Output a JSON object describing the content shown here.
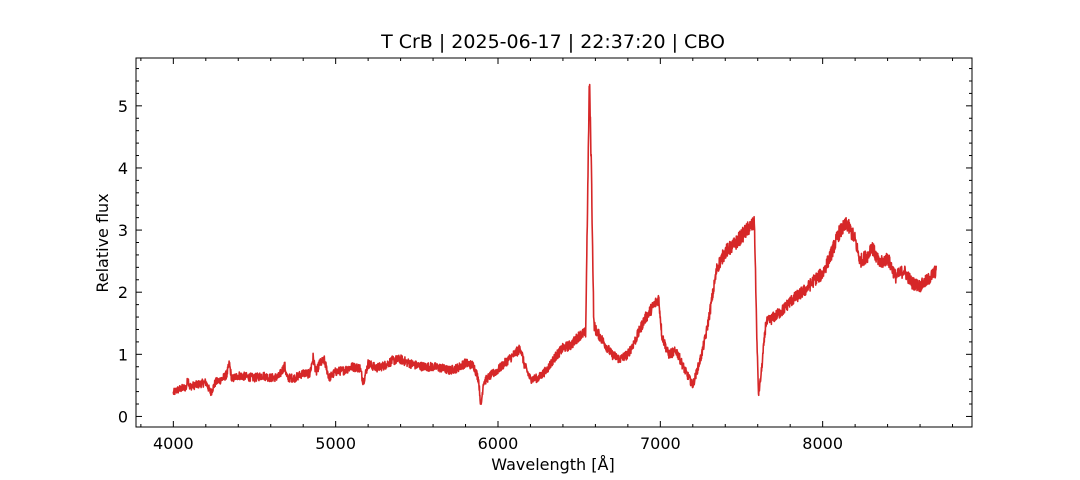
{
  "chart_data": {
    "type": "line",
    "title": "T CrB | 2025-06-17 | 22:37:20 | CBO",
    "xlabel": "Wavelength [Å]",
    "ylabel": "Relative flux",
    "xlim": [
      3770,
      8920
    ],
    "ylim": [
      -0.17,
      5.77
    ],
    "xticks": [
      4000,
      5000,
      6000,
      7000,
      8000
    ],
    "yticks": [
      0,
      1,
      2,
      3,
      4,
      5
    ],
    "tick_direction": "in",
    "minor_ticks": true,
    "grid": false,
    "legend": "none",
    "series": [
      {
        "color": "#d62728",
        "noise_amplitude": 0.09,
        "points": [
          [
            4000,
            0.38
          ],
          [
            4020,
            0.42
          ],
          [
            4050,
            0.45
          ],
          [
            4080,
            0.47
          ],
          [
            4090,
            0.62
          ],
          [
            4100,
            0.48
          ],
          [
            4130,
            0.5
          ],
          [
            4160,
            0.52
          ],
          [
            4200,
            0.55
          ],
          [
            4230,
            0.38
          ],
          [
            4260,
            0.55
          ],
          [
            4300,
            0.6
          ],
          [
            4330,
            0.68
          ],
          [
            4345,
            0.85
          ],
          [
            4360,
            0.6
          ],
          [
            4400,
            0.66
          ],
          [
            4450,
            0.64
          ],
          [
            4500,
            0.62
          ],
          [
            4550,
            0.66
          ],
          [
            4600,
            0.62
          ],
          [
            4650,
            0.64
          ],
          [
            4686,
            0.82
          ],
          [
            4700,
            0.62
          ],
          [
            4750,
            0.62
          ],
          [
            4800,
            0.7
          ],
          [
            4840,
            0.68
          ],
          [
            4861,
            0.95
          ],
          [
            4880,
            0.7
          ],
          [
            4900,
            0.85
          ],
          [
            4930,
            0.9
          ],
          [
            4960,
            0.62
          ],
          [
            5000,
            0.72
          ],
          [
            5050,
            0.74
          ],
          [
            5100,
            0.8
          ],
          [
            5150,
            0.78
          ],
          [
            5170,
            0.55
          ],
          [
            5200,
            0.85
          ],
          [
            5250,
            0.78
          ],
          [
            5300,
            0.82
          ],
          [
            5350,
            0.9
          ],
          [
            5400,
            0.92
          ],
          [
            5450,
            0.86
          ],
          [
            5500,
            0.82
          ],
          [
            5550,
            0.8
          ],
          [
            5600,
            0.8
          ],
          [
            5650,
            0.78
          ],
          [
            5700,
            0.74
          ],
          [
            5750,
            0.78
          ],
          [
            5800,
            0.86
          ],
          [
            5850,
            0.82
          ],
          [
            5880,
            0.6
          ],
          [
            5895,
            0.15
          ],
          [
            5910,
            0.55
          ],
          [
            5950,
            0.65
          ],
          [
            6000,
            0.75
          ],
          [
            6050,
            0.88
          ],
          [
            6100,
            1.0
          ],
          [
            6140,
            1.1
          ],
          [
            6160,
            0.85
          ],
          [
            6200,
            0.6
          ],
          [
            6250,
            0.62
          ],
          [
            6300,
            0.75
          ],
          [
            6350,
            0.95
          ],
          [
            6400,
            1.1
          ],
          [
            6450,
            1.15
          ],
          [
            6500,
            1.3
          ],
          [
            6540,
            1.35
          ],
          [
            6563,
            5.42
          ],
          [
            6575,
            4.05
          ],
          [
            6590,
            1.5
          ],
          [
            6600,
            1.4
          ],
          [
            6650,
            1.2
          ],
          [
            6700,
            1.0
          ],
          [
            6750,
            0.92
          ],
          [
            6800,
            1.0
          ],
          [
            6850,
            1.25
          ],
          [
            6900,
            1.55
          ],
          [
            6950,
            1.75
          ],
          [
            6990,
            1.9
          ],
          [
            7010,
            1.3
          ],
          [
            7050,
            1.0
          ],
          [
            7100,
            1.05
          ],
          [
            7150,
            0.75
          ],
          [
            7200,
            0.5
          ],
          [
            7250,
            0.95
          ],
          [
            7280,
            1.3
          ],
          [
            7300,
            1.6
          ],
          [
            7350,
            2.4
          ],
          [
            7400,
            2.65
          ],
          [
            7450,
            2.75
          ],
          [
            7500,
            2.9
          ],
          [
            7550,
            3.05
          ],
          [
            7580,
            3.1
          ],
          [
            7595,
            1.2
          ],
          [
            7605,
            0.35
          ],
          [
            7620,
            0.65
          ],
          [
            7650,
            1.5
          ],
          [
            7700,
            1.6
          ],
          [
            7750,
            1.7
          ],
          [
            7800,
            1.85
          ],
          [
            7850,
            1.95
          ],
          [
            7900,
            2.05
          ],
          [
            7950,
            2.2
          ],
          [
            8000,
            2.3
          ],
          [
            8050,
            2.6
          ],
          [
            8100,
            2.95
          ],
          [
            8150,
            3.1
          ],
          [
            8200,
            2.85
          ],
          [
            8230,
            2.5
          ],
          [
            8280,
            2.6
          ],
          [
            8300,
            2.75
          ],
          [
            8350,
            2.45
          ],
          [
            8400,
            2.55
          ],
          [
            8450,
            2.25
          ],
          [
            8500,
            2.35
          ],
          [
            8550,
            2.15
          ],
          [
            8600,
            2.1
          ],
          [
            8650,
            2.2
          ],
          [
            8700,
            2.35
          ]
        ]
      }
    ]
  }
}
